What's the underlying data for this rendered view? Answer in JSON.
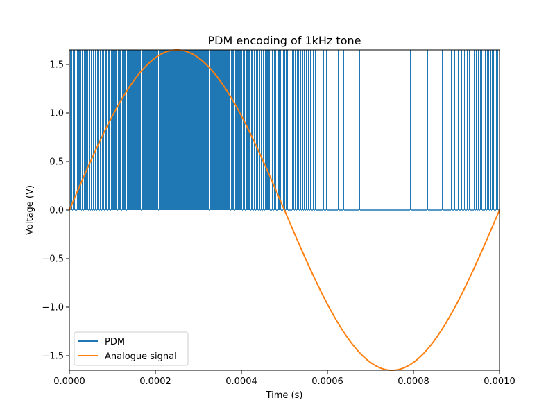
{
  "chart_data": {
    "type": "line",
    "title": "PDM encoding of 1kHz tone",
    "xlabel": "Time (s)",
    "ylabel": "Voltage (V)",
    "xlim": [
      0,
      0.001
    ],
    "ylim": [
      -1.65,
      1.65
    ],
    "grid": false,
    "legend_position": "lower-left",
    "x_ticks": [
      0,
      0.0002,
      0.0004,
      0.0006,
      0.0008,
      0.001
    ],
    "x_tick_labels": [
      "0.0000",
      "0.0002",
      "0.0004",
      "0.0006",
      "0.0008",
      "0.0010"
    ],
    "y_ticks": [
      -1.5,
      -1.0,
      -0.5,
      0.0,
      0.5,
      1.0,
      1.5
    ],
    "y_tick_labels": [
      "−1.5",
      "−1.0",
      "−0.5",
      "0.0",
      "0.5",
      "1.0",
      "1.5"
    ],
    "series": [
      {
        "name": "PDM",
        "color": "#1f77b4",
        "kind": "pulse-density",
        "high_value": 1.65,
        "low_value": 0.0,
        "x_range": [
          0,
          0.001
        ],
        "pulse_density_from_analogue": true
      },
      {
        "name": "Analogue signal",
        "color": "#ff7f0e",
        "kind": "sine",
        "amplitude": 1.65,
        "frequency_hz": 1000,
        "x_range": [
          0,
          0.001
        ]
      }
    ]
  }
}
